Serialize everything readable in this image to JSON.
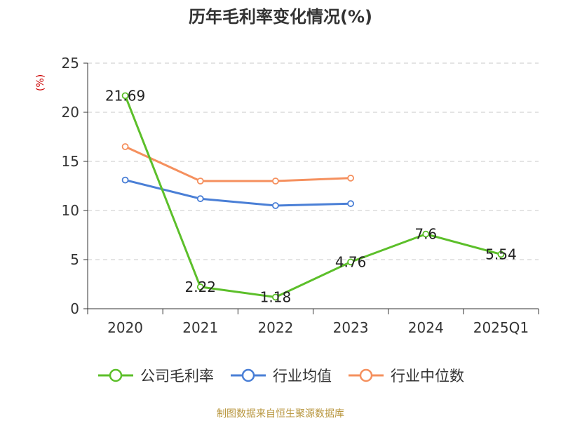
{
  "colors": {
    "gross_margin": "#5cbf2a",
    "industry_avg": "#4a7fd6",
    "industry_median": "#f5905e",
    "axis": "#333333",
    "grid": "#c8c8c8"
  },
  "chart_data": {
    "type": "line",
    "title": "历年毛利率变化情况(%)",
    "ylabel": "(%)",
    "xlabel": "",
    "categories": [
      "2020",
      "2021",
      "2022",
      "2023",
      "2024",
      "2025Q1"
    ],
    "ylim": [
      0,
      25
    ],
    "yticks": [
      0,
      5,
      10,
      15,
      20,
      25
    ],
    "grid": true,
    "legend_position": "bottom",
    "series": [
      {
        "name": "公司毛利率",
        "color_key": "gross_margin",
        "values": [
          21.69,
          2.22,
          1.18,
          4.76,
          7.6,
          5.54
        ],
        "labels": [
          "21.69",
          "2.22",
          "1.18",
          "4.76",
          "7.6",
          "5.54"
        ]
      },
      {
        "name": "行业均值",
        "color_key": "industry_avg",
        "values": [
          13.1,
          11.2,
          10.5,
          10.7,
          null,
          null
        ]
      },
      {
        "name": "行业中位数",
        "color_key": "industry_median",
        "values": [
          16.5,
          13.0,
          13.0,
          13.3,
          null,
          null
        ]
      }
    ]
  },
  "footer": {
    "source": "制图数据来自恒生聚源数据库"
  }
}
